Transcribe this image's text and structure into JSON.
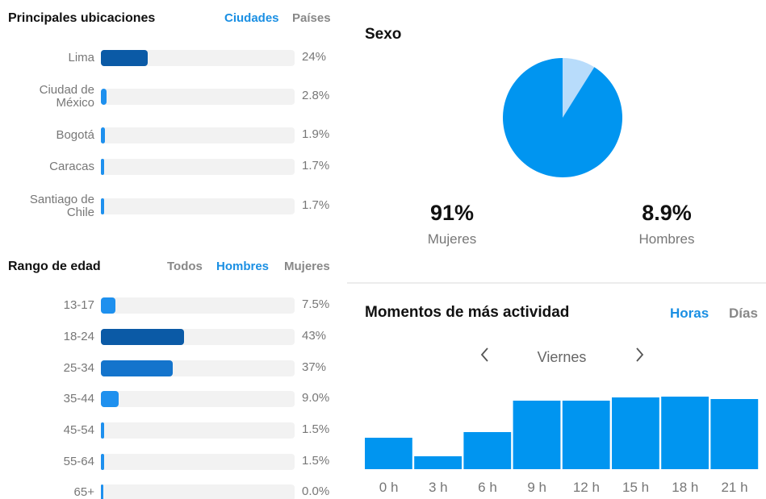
{
  "chart_data": [
    {
      "type": "hbar",
      "title": "Principales ubicaciones",
      "tabs": [
        "Ciudades",
        "Países"
      ],
      "active_tab": 0,
      "categories": [
        "Lima",
        "Ciudad de México",
        "Bogotá",
        "Caracas",
        "Santiago de Chile"
      ],
      "values": [
        24,
        2.8,
        1.9,
        1.7,
        1.7
      ],
      "value_labels": [
        "24%",
        "2.8%",
        "1.9%",
        "1.7%",
        "1.7%"
      ],
      "colors": [
        "#0b5aa6",
        "#1e90ee",
        "#1e90ee",
        "#1e90ee",
        "#1e90ee"
      ],
      "xlim": [
        0,
        100
      ]
    },
    {
      "type": "hbar",
      "title": "Rango de edad",
      "tabs": [
        "Todos",
        "Hombres",
        "Mujeres"
      ],
      "active_tab": 1,
      "categories": [
        "13-17",
        "18-24",
        "25-34",
        "35-44",
        "45-54",
        "55-64",
        "65+"
      ],
      "values": [
        7.5,
        43,
        37,
        9.0,
        1.5,
        1.5,
        0.0
      ],
      "value_labels": [
        "7.5%",
        "43%",
        "37%",
        "9.0%",
        "1.5%",
        "1.5%",
        "0.0%"
      ],
      "colors": [
        "#1e90ee",
        "#0b5aa6",
        "#1474cc",
        "#1e90ee",
        "#1e90ee",
        "#1e90ee",
        "#1e90ee"
      ],
      "xlim": [
        0,
        100
      ]
    },
    {
      "type": "pie",
      "title": "Sexo",
      "categories": [
        "Mujeres",
        "Hombres"
      ],
      "values": [
        91,
        8.9
      ],
      "value_labels": [
        "91%",
        "8.9%"
      ],
      "colors": [
        "#0095f0",
        "#b8dcfb"
      ]
    },
    {
      "type": "bar",
      "title": "Momentos de más actividad",
      "tabs": [
        "Horas",
        "Días"
      ],
      "active_tab": 0,
      "day": "Viernes",
      "categories": [
        "0 h",
        "3 h",
        "6 h",
        "9 h",
        "12 h",
        "15 h",
        "18 h",
        "21 h"
      ],
      "values": [
        39,
        16,
        46,
        85,
        85,
        89,
        90,
        87
      ],
      "ylim": [
        0,
        100
      ],
      "color": "#0095f0"
    }
  ]
}
